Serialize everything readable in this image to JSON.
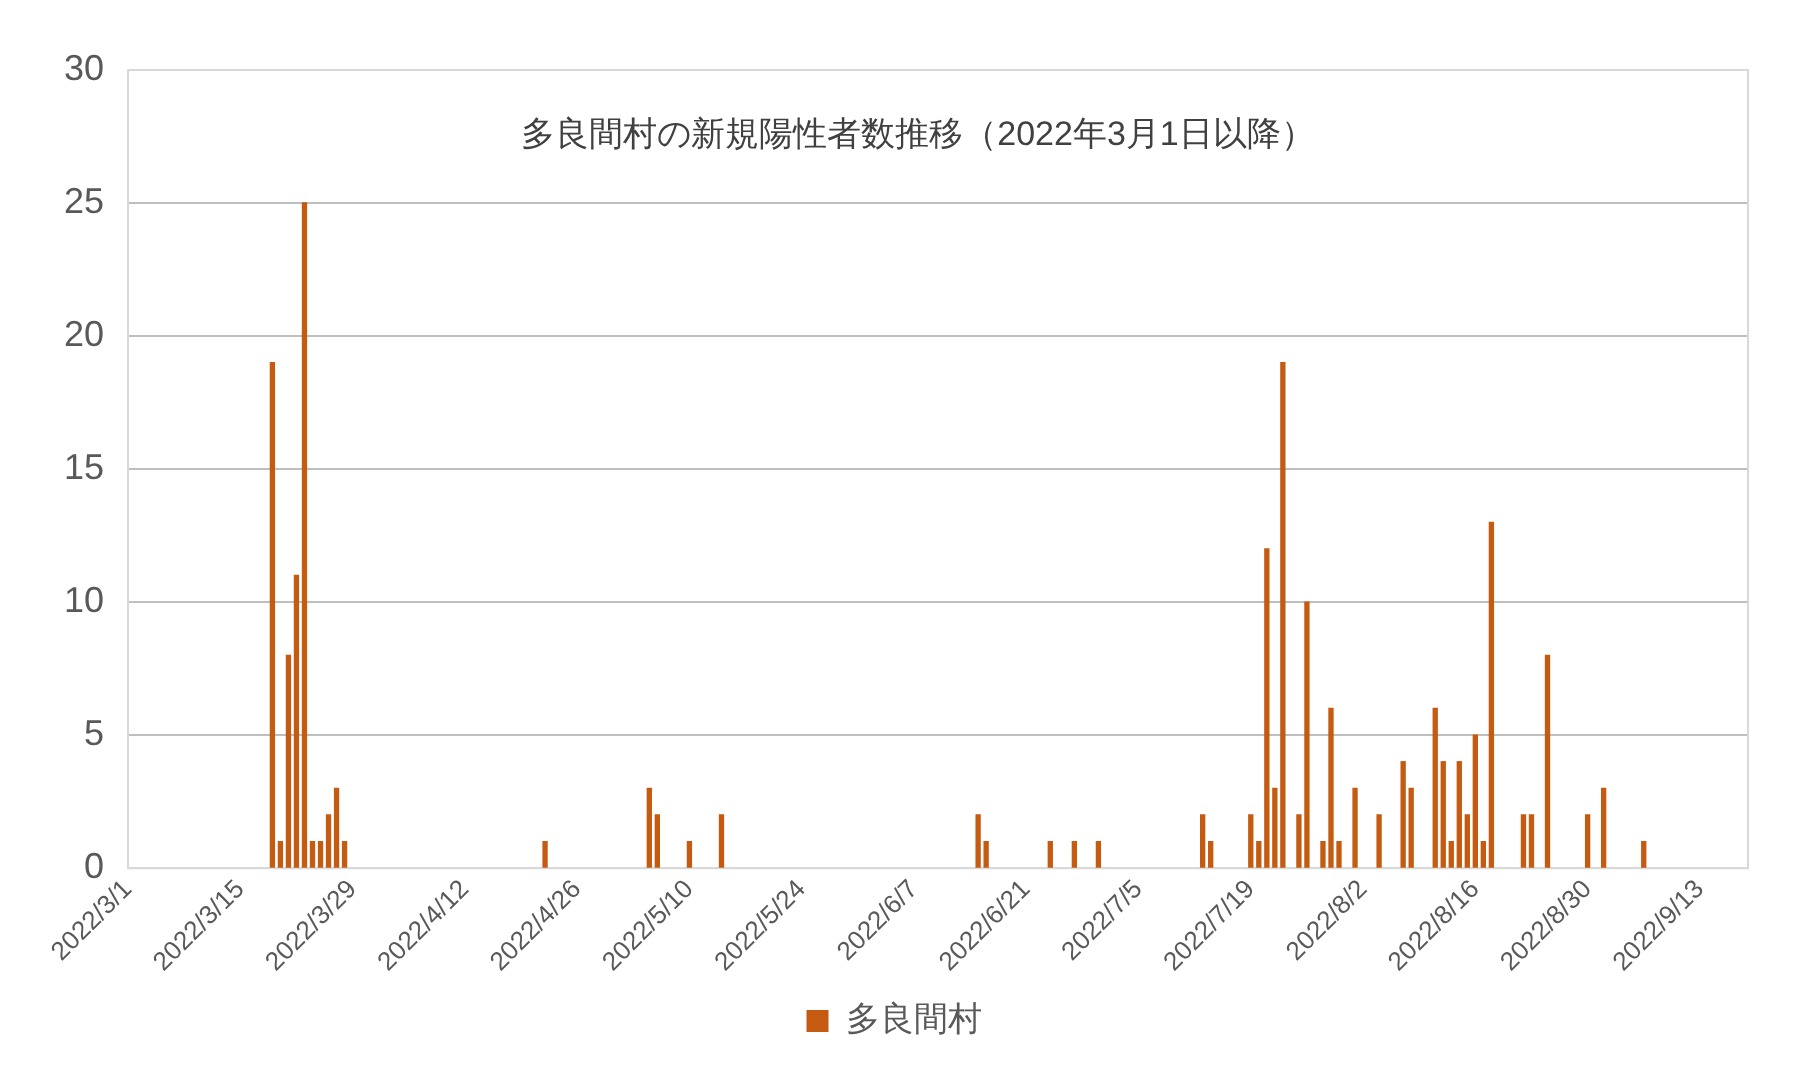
{
  "chart_data": {
    "type": "bar",
    "title": "多良間村の新規陽性者数推移（2022年3月1日以降）",
    "x": [
      "2022-03-19",
      "2022-03-20",
      "2022-03-21",
      "2022-03-22",
      "2022-03-23",
      "2022-03-24",
      "2022-03-25",
      "2022-03-26",
      "2022-03-27",
      "2022-03-28",
      "2022-04-22",
      "2022-05-05",
      "2022-05-06",
      "2022-05-10",
      "2022-05-14",
      "2022-06-15",
      "2022-06-16",
      "2022-06-24",
      "2022-06-27",
      "2022-06-30",
      "2022-07-13",
      "2022-07-14",
      "2022-07-19",
      "2022-07-20",
      "2022-07-21",
      "2022-07-22",
      "2022-07-23",
      "2022-07-25",
      "2022-07-26",
      "2022-07-28",
      "2022-07-29",
      "2022-07-30",
      "2022-08-01",
      "2022-08-04",
      "2022-08-07",
      "2022-08-08",
      "2022-08-11",
      "2022-08-12",
      "2022-08-13",
      "2022-08-14",
      "2022-08-15",
      "2022-08-16",
      "2022-08-17",
      "2022-08-18",
      "2022-08-22",
      "2022-08-23",
      "2022-08-25",
      "2022-08-30",
      "2022-09-01",
      "2022-09-06"
    ],
    "series": [
      {
        "name": "多良間村",
        "color": "#c55a11",
        "values": [
          19,
          1,
          8,
          11,
          25,
          1,
          1,
          2,
          3,
          1,
          1,
          3,
          2,
          1,
          2,
          2,
          1,
          1,
          1,
          1,
          2,
          1,
          2,
          1,
          12,
          3,
          19,
          2,
          10,
          1,
          6,
          1,
          3,
          2,
          4,
          3,
          6,
          4,
          1,
          4,
          2,
          5,
          1,
          13,
          2,
          2,
          8,
          2,
          3,
          1
        ]
      }
    ],
    "xlim": [
      "2022-03-01",
      "2022-09-19"
    ],
    "xticks": [
      {
        "value": "2022-03-01",
        "label": "2022/3/1"
      },
      {
        "value": "2022-03-15",
        "label": "2022/3/15"
      },
      {
        "value": "2022-03-29",
        "label": "2022/3/29"
      },
      {
        "value": "2022-04-12",
        "label": "2022/4/12"
      },
      {
        "value": "2022-04-26",
        "label": "2022/4/26"
      },
      {
        "value": "2022-05-10",
        "label": "2022/5/10"
      },
      {
        "value": "2022-05-24",
        "label": "2022/5/24"
      },
      {
        "value": "2022-06-07",
        "label": "2022/6/7"
      },
      {
        "value": "2022-06-21",
        "label": "2022/6/21"
      },
      {
        "value": "2022-07-05",
        "label": "2022/7/5"
      },
      {
        "value": "2022-07-19",
        "label": "2022/7/19"
      },
      {
        "value": "2022-08-02",
        "label": "2022/8/2"
      },
      {
        "value": "2022-08-16",
        "label": "2022/8/16"
      },
      {
        "value": "2022-08-30",
        "label": "2022/8/30"
      },
      {
        "value": "2022-09-13",
        "label": "2022/9/13"
      }
    ],
    "ylim": [
      0,
      30
    ],
    "yticks": [
      0,
      5,
      10,
      15,
      20,
      25,
      30
    ],
    "grid": "y",
    "legend": "bottom"
  }
}
